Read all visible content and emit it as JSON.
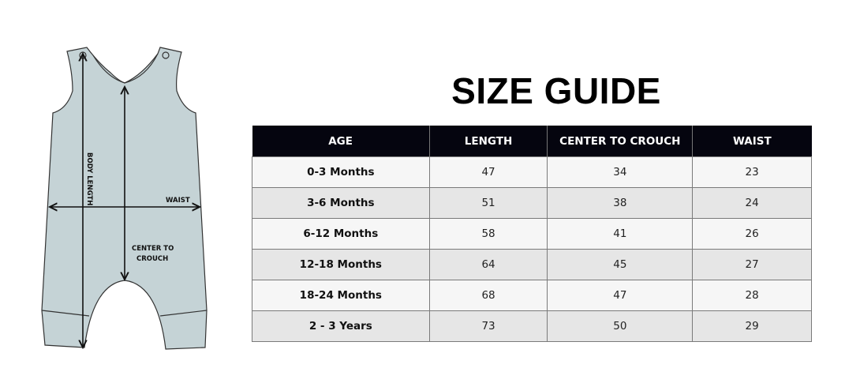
{
  "title": "SIZE GUIDE",
  "diagram": {
    "labels": {
      "body_length": "BODY LENGTH",
      "waist": "WAIST",
      "center_to_crouch_1": "CENTER TO",
      "center_to_crouch_2": "CROUCH"
    },
    "fill_color": "#c5d3d6"
  },
  "table": {
    "headers": [
      "AGE",
      "LENGTH",
      "CENTER TO CROUCH",
      "WAIST"
    ],
    "rows": [
      [
        "0-3 Months",
        "47",
        "34",
        "23"
      ],
      [
        "3-6 Months",
        "51",
        "38",
        "24"
      ],
      [
        "6-12 Months",
        "58",
        "41",
        "26"
      ],
      [
        "12-18 Months",
        "64",
        "45",
        "27"
      ],
      [
        "18-24 Months",
        "68",
        "47",
        "28"
      ],
      [
        "2 - 3 Years",
        "73",
        "50",
        "29"
      ]
    ]
  }
}
